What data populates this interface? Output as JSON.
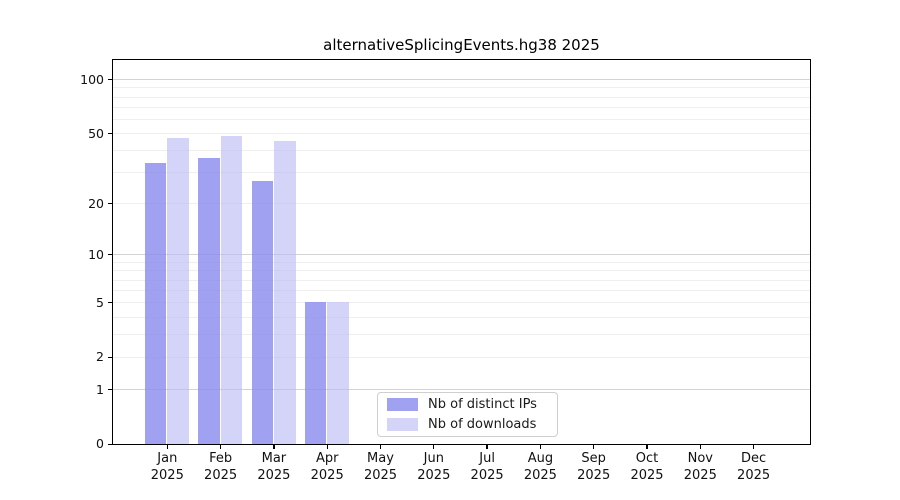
{
  "chart_data": {
    "type": "bar",
    "title": "alternativeSplicingEvents.hg38 2025",
    "categories": [
      "Jan",
      "Feb",
      "Mar",
      "Apr",
      "May",
      "Jun",
      "Jul",
      "Aug",
      "Sep",
      "Oct",
      "Nov",
      "Dec"
    ],
    "year": "2025",
    "series": [
      {
        "name": "Nb of distinct IPs",
        "color": "#a7a7f3",
        "fill": "rgba(140,140,238,0.82)",
        "values": [
          34,
          36,
          27,
          5,
          0,
          0,
          0,
          0,
          0,
          0,
          0,
          0
        ]
      },
      {
        "name": "Nb of downloads",
        "color": "#d7d7fa",
        "fill": "rgba(185,185,245,0.62)",
        "values": [
          47,
          48,
          45,
          5,
          0,
          0,
          0,
          0,
          0,
          0,
          0,
          0
        ]
      }
    ],
    "y_axis": {
      "scale": "log1p",
      "ticks": [
        0,
        1,
        2,
        5,
        10,
        20,
        50,
        100
      ],
      "top_value": 130
    },
    "grid": {
      "major": [
        1,
        10,
        100
      ],
      "minor": [
        2,
        3,
        4,
        5,
        6,
        7,
        8,
        9,
        20,
        30,
        40,
        50,
        60,
        70,
        80,
        90
      ]
    },
    "legend": {
      "items": [
        "Nb of distinct IPs",
        "Nb of downloads"
      ],
      "position": "bottom-center"
    }
  }
}
